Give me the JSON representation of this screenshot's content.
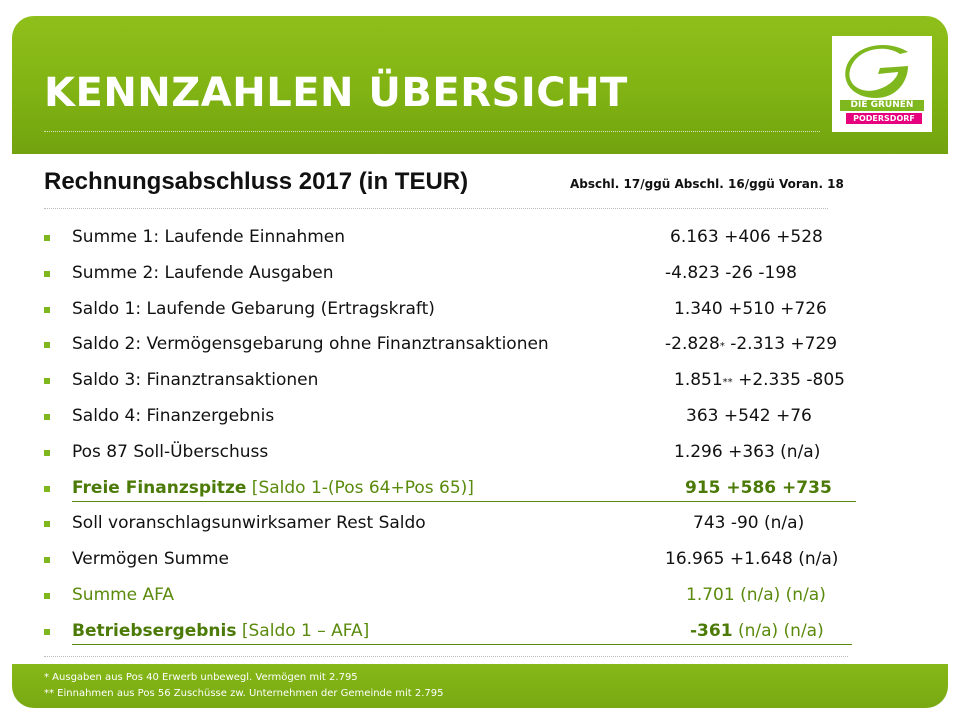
{
  "header": {
    "title": "KENNZAHLEN ÜBERSICHT",
    "logo_line1": "DIE GRÜNEN",
    "logo_line2": "PODERSDORF"
  },
  "subtitle": "Rechnungsabschluss 2017 (in TEUR)",
  "column_header": "Abschl. 17/ggü Abschl. 16/ggü Voran. 18",
  "rows": [
    {
      "label": "Summe 1: Laufende Einnahmen",
      "value": "6.163 +406 +528"
    },
    {
      "label": "Summe 2: Laufende Ausgaben",
      "value": "-4.823 -26 -198"
    },
    {
      "label": "Saldo 1: Laufende Gebarung (Ertragskraft)",
      "value": "1.340 +510 +726"
    },
    {
      "label": "Saldo 2: Vermögensgebarung ohne Finanztransaktionen",
      "value_a": "-2.828",
      "mark": "*",
      "value_b": " -2.313 +729"
    },
    {
      "label": "Saldo 3: Finanztransaktionen",
      "value_a": "1.851",
      "mark": "**",
      "value_b": " +2.335 -805"
    },
    {
      "label": "Saldo 4: Finanzergebnis",
      "value": "363 +542 +76"
    },
    {
      "label": "Pos 87 Soll-Überschuss",
      "value": "1.296 +363 (n/a)"
    },
    {
      "label_bold": "Freie Finanzspitze",
      "label_rest": " [Saldo 1-(Pos 64+Pos 65)]",
      "value": "915 +586 +735"
    },
    {
      "label": "Soll voranschlagsunwirksamer Rest Saldo",
      "value": "743 -90 (n/a)"
    },
    {
      "label": "Vermögen Summe",
      "value": "16.965 +1.648 (n/a)"
    },
    {
      "label": "Summe AFA",
      "value": "1.701 (n/a) (n/a)"
    },
    {
      "label_bold": "Betriebsergebnis",
      "label_rest": " [Saldo 1 – AFA]",
      "value_bold": "-361",
      "value_rest": " (n/a) (n/a)"
    }
  ],
  "footnotes": [
    "* Ausgaben aus Pos 40 Erwerb unbewegl. Vermögen mit 2.795",
    "** Einnahmen aus Pos 56 Zuschüsse zw. Unternehmen der Gemeinde mit 2.795"
  ],
  "colors": {
    "accent_green": "#80b313",
    "text_green": "#5a8a0c",
    "logo_magenta": "#e6007e"
  }
}
